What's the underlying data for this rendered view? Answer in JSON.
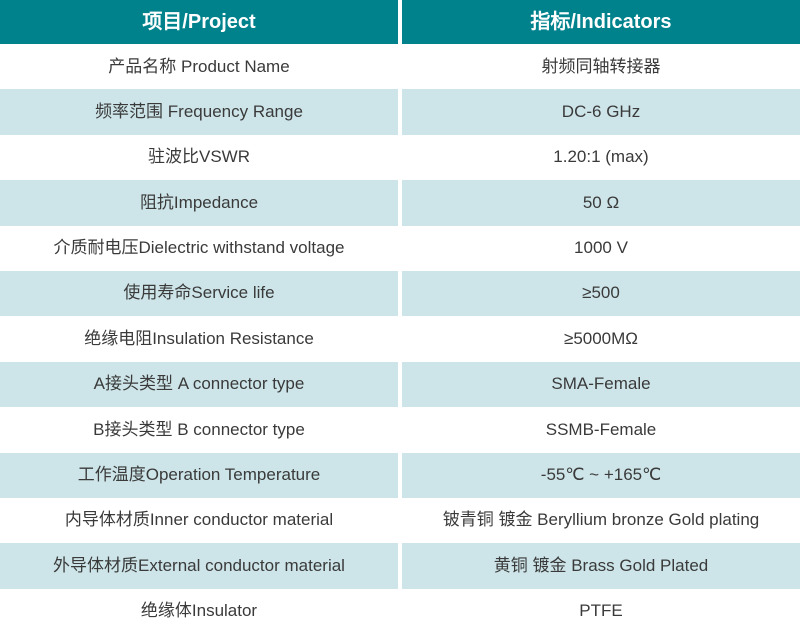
{
  "table": {
    "title": "product-specification-table",
    "colors": {
      "header_background": "#00828d",
      "header_text": "#ffffff",
      "alt_row_background": "#cde5e9",
      "body_text": "#3a3a3a"
    },
    "header": {
      "project": "项目/Project",
      "indicators": "指标/Indicators"
    },
    "rows": [
      {
        "project": "产品名称 Product Name",
        "indicator": "射频同轴转接器"
      },
      {
        "project": "频率范围 Frequency Range",
        "indicator": "DC-6 GHz"
      },
      {
        "project": "驻波比VSWR",
        "indicator": "1.20:1 (max)"
      },
      {
        "project": "阻抗Impedance",
        "indicator": "50 Ω"
      },
      {
        "project": "介质耐电压Dielectric withstand voltage",
        "indicator": "1000 V"
      },
      {
        "project": "使用寿命Service life",
        "indicator": "≥500"
      },
      {
        "project": "绝缘电阻Insulation Resistance",
        "indicator": "≥5000MΩ"
      },
      {
        "project": "A接头类型 A connector type",
        "indicator": "SMA-Female"
      },
      {
        "project": "B接头类型 B connector type",
        "indicator": "SSMB-Female"
      },
      {
        "project": "工作温度Operation Temperature",
        "indicator": "-55℃ ~ +165℃"
      },
      {
        "project": "内导体材质Inner conductor material",
        "indicator": "铍青铜 镀金 Beryllium bronze Gold plating"
      },
      {
        "project": "外导体材质External conductor material",
        "indicator": "黄铜 镀金 Brass Gold Plated"
      },
      {
        "project": "绝缘体Insulator",
        "indicator": "PTFE"
      }
    ]
  }
}
